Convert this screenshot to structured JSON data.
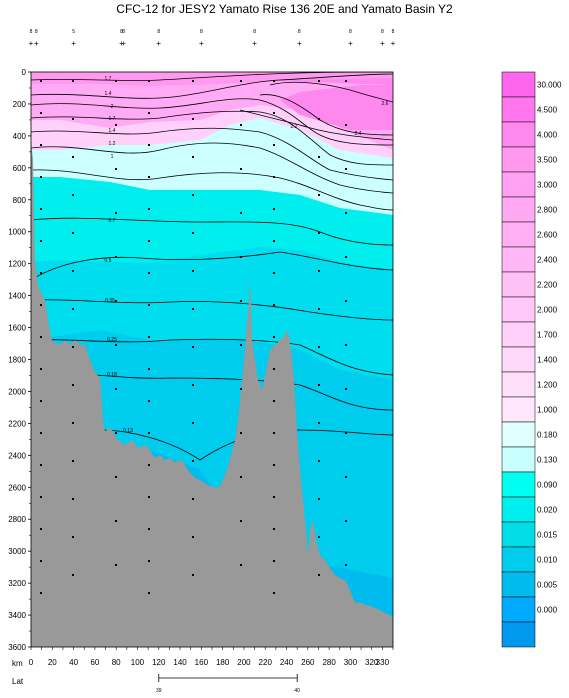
{
  "chart_data": {
    "type": "heatmap",
    "title": "CFC-12 for JESY2 Yamato Rise 136 20E and Yamato Basin Y2",
    "xlabel": "km",
    "x_secondary_label": "Lat",
    "xlim": [
      0,
      340
    ],
    "ylim": [
      3600,
      0
    ],
    "x_ticks": [
      0,
      10,
      20,
      30,
      40,
      50,
      60,
      70,
      80,
      90,
      100,
      110,
      120,
      130,
      140,
      150,
      160,
      170,
      180,
      190,
      200,
      210,
      220,
      230,
      240,
      250,
      260,
      270,
      280,
      290,
      300,
      310,
      320,
      330,
      340
    ],
    "x_tick_labels": [
      "0",
      "20",
      "40",
      "60",
      "80",
      "100",
      "120",
      "140",
      "160",
      "180",
      "200",
      "220",
      "240",
      "260",
      "280",
      "300",
      "320",
      "330"
    ],
    "x_tick_label_values": [
      0,
      20,
      40,
      60,
      80,
      100,
      120,
      140,
      160,
      180,
      200,
      220,
      240,
      260,
      280,
      300,
      320,
      330
    ],
    "y_tick_labels": [
      "0",
      "200",
      "400",
      "600",
      "800",
      "1000",
      "1200",
      "1400",
      "1600",
      "1800",
      "2000",
      "2200",
      "2400",
      "2600",
      "2800",
      "3000",
      "3200",
      "3400",
      "3600"
    ],
    "y_tick_values": [
      0,
      200,
      400,
      600,
      800,
      1000,
      1200,
      1400,
      1600,
      1800,
      2000,
      2200,
      2400,
      2600,
      2800,
      3000,
      3200,
      3400,
      3600
    ],
    "lat_ticks": [
      {
        "label": "39",
        "km": 120
      },
      {
        "label": "40",
        "km": 250
      }
    ],
    "stations_km": [
      0,
      5,
      40,
      85,
      87,
      120,
      160,
      210,
      252,
      300,
      330,
      378
    ],
    "station_labels": [
      "8",
      "8",
      "5",
      "8",
      "8",
      "8",
      "8",
      "8",
      "8",
      "8",
      "8",
      "8"
    ],
    "contours": [
      {
        "level": 2.6,
        "label": "2.6"
      },
      {
        "level": 2.4,
        "label": "2.4"
      },
      {
        "level": 2.2,
        "label": "2.2"
      },
      {
        "level": 2.0,
        "label": "2"
      },
      {
        "level": 1.7,
        "label": "1.7"
      },
      {
        "level": 1.4,
        "label": "1.4"
      },
      {
        "level": 1.2,
        "label": "1.2"
      },
      {
        "level": 1.0,
        "label": "1"
      },
      {
        "level": 0.7,
        "label": "0.7"
      },
      {
        "level": 0.5,
        "label": "0.5"
      },
      {
        "level": 0.35,
        "label": "0.35"
      },
      {
        "level": 0.25,
        "label": "0.25"
      },
      {
        "level": 0.18,
        "label": "0.18"
      },
      {
        "level": 0.13,
        "label": "0.13"
      }
    ],
    "colorscale": {
      "labels": [
        "30.000",
        "4.500",
        "4.000",
        "3.500",
        "3.000",
        "2.800",
        "2.600",
        "2.400",
        "2.200",
        "2.000",
        "1.700",
        "1.400",
        "1.200",
        "1.000",
        "0.180",
        "0.130",
        "0.090",
        "0.020",
        "0.015",
        "0.010",
        "0.005",
        "0.000"
      ],
      "colors": [
        "#ff66ee",
        "#ff77ee",
        "#ff88ef",
        "#ff99f0",
        "#ffa0f2",
        "#ffa8f3",
        "#ffb0f4",
        "#ffb8f5",
        "#ffc0f6",
        "#ffc8f8",
        "#ffd0f9",
        "#ffd8fa",
        "#ffe0fb",
        "#ffe8fc",
        "#e0ffff",
        "#c8ffff",
        "#00ffee",
        "#00eeee",
        "#00dde8",
        "#00ccee",
        "#00bbee",
        "#00aaff",
        "#0099ee"
      ]
    },
    "zone_colors": {
      "pink_dark": "#ff88ee",
      "pink_mid": "#ffaaf4",
      "pink_light": "#ffd0fa",
      "cyan_light": "#ccffff",
      "cyan": "#00eeee",
      "cyan_deep": "#00ddee",
      "blue_light": "#00ccee",
      "blue": "#00bbee",
      "terrain": "#999999"
    }
  }
}
